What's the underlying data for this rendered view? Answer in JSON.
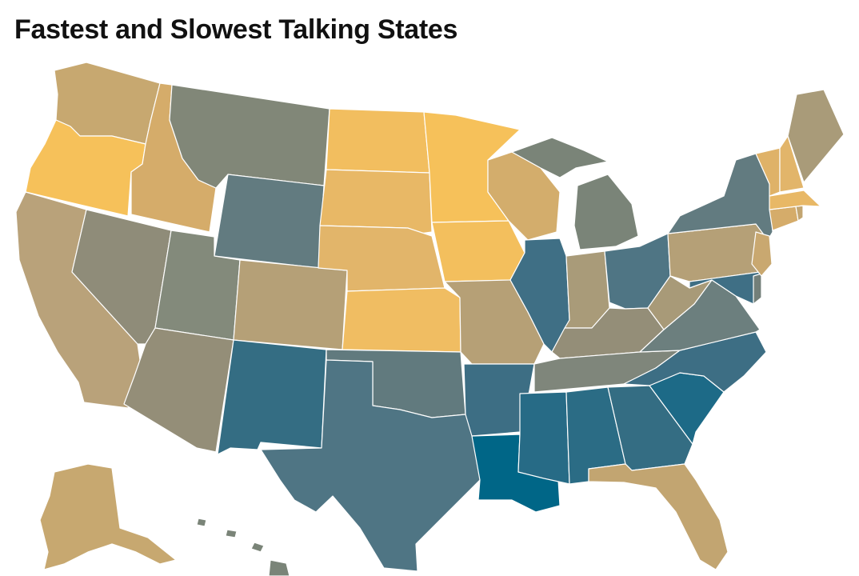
{
  "title": "Fastest and Slowest Talking States",
  "palette": {
    "fastest": "#f6c15a",
    "fast": "#f0bd62",
    "fast_mid": "#d5ac6a",
    "mid_warm": "#c7a870",
    "mid": "#b5a077",
    "neutral": "#8f8c79",
    "neutral_cool": "#7f867b",
    "cool": "#677c7f",
    "slow": "#527684",
    "slower": "#3f6f85",
    "slowest": "#006687",
    "slow_deep": "#1d6a87"
  },
  "states": [
    {
      "code": "WA",
      "color": "#c7a870"
    },
    {
      "code": "OR",
      "color": "#f6c15a"
    },
    {
      "code": "CA",
      "color": "#b9a27a"
    },
    {
      "code": "ID",
      "color": "#d5ac6a"
    },
    {
      "code": "NV",
      "color": "#8f8c79"
    },
    {
      "code": "MT",
      "color": "#818778"
    },
    {
      "code": "WY",
      "color": "#627b80"
    },
    {
      "code": "UT",
      "color": "#838a7b"
    },
    {
      "code": "AZ",
      "color": "#948e78"
    },
    {
      "code": "CO",
      "color": "#b5a077"
    },
    {
      "code": "NM",
      "color": "#346d83"
    },
    {
      "code": "ND",
      "color": "#f2be5f"
    },
    {
      "code": "SD",
      "color": "#e8b866"
    },
    {
      "code": "NE",
      "color": "#e2b56a"
    },
    {
      "code": "KS",
      "color": "#f0bd62"
    },
    {
      "code": "OK",
      "color": "#617a7e"
    },
    {
      "code": "TX",
      "color": "#4f7584"
    },
    {
      "code": "MN",
      "color": "#f6c15a"
    },
    {
      "code": "IA",
      "color": "#f3bf5d"
    },
    {
      "code": "MO",
      "color": "#b6a076"
    },
    {
      "code": "AR",
      "color": "#3d6e84"
    },
    {
      "code": "LA",
      "color": "#006687"
    },
    {
      "code": "WI",
      "color": "#d3ad6c"
    },
    {
      "code": "IL",
      "color": "#3f6f85"
    },
    {
      "code": "MI",
      "color": "#7a8478"
    },
    {
      "code": "IN",
      "color": "#a99b79"
    },
    {
      "code": "OH",
      "color": "#4f7584"
    },
    {
      "code": "KY",
      "color": "#948e78"
    },
    {
      "code": "TN",
      "color": "#7f867b"
    },
    {
      "code": "MS",
      "color": "#276b86"
    },
    {
      "code": "AL",
      "color": "#2b6c85"
    },
    {
      "code": "GA",
      "color": "#346d83"
    },
    {
      "code": "FL",
      "color": "#c2a571"
    },
    {
      "code": "SC",
      "color": "#1d6a87"
    },
    {
      "code": "NC",
      "color": "#3d6e84"
    },
    {
      "code": "VA",
      "color": "#6c7f7e"
    },
    {
      "code": "WV",
      "color": "#a89a78"
    },
    {
      "code": "PA",
      "color": "#b5a077"
    },
    {
      "code": "NY",
      "color": "#627b80"
    },
    {
      "code": "MD",
      "color": "#3f6f85"
    },
    {
      "code": "DE",
      "color": "#737f79"
    },
    {
      "code": "NJ",
      "color": "#c9a870"
    },
    {
      "code": "CT",
      "color": "#d5ac6a"
    },
    {
      "code": "RI",
      "color": "#c2a571"
    },
    {
      "code": "MA",
      "color": "#e8b866"
    },
    {
      "code": "VT",
      "color": "#dfb268"
    },
    {
      "code": "NH",
      "color": "#e2b56a"
    },
    {
      "code": "ME",
      "color": "#a99b79"
    },
    {
      "code": "AK",
      "color": "#c7a870"
    },
    {
      "code": "HI",
      "color": "#7a8478"
    }
  ]
}
